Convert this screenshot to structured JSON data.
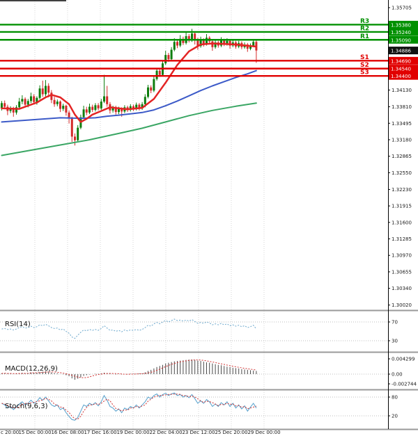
{
  "colors": {
    "background": "#ffffff",
    "candle_up": "#0e7d0e",
    "candle_down": "#d42a2a",
    "ma_fast_red": "#e32424",
    "ma_mid_blue": "#3c5ac8",
    "ma_slow_green": "#3aa664",
    "resistance_green": "#009000",
    "support_red": "#e10000",
    "current_price_badge": "#111111",
    "rsi_line": "#6aa7cc",
    "macd_hist": "#4a4a4a",
    "macd_signal": "#d03030",
    "stoch_k": "#55a0cc",
    "stoch_d": "#d03030",
    "grid": "#d6d6d6",
    "separator": "#9a9a9a",
    "axis_text": "#1a1a1a"
  },
  "levels": [
    {
      "name": "R3",
      "label": "1.35380",
      "price": 1.3538,
      "kind": "resistance"
    },
    {
      "name": "R2",
      "label": "1.35240",
      "price": 1.3524,
      "kind": "resistance"
    },
    {
      "name": "R1",
      "label": "1.35090",
      "price": 1.3509,
      "kind": "resistance"
    },
    {
      "name": "S1",
      "label": "1.34690",
      "price": 1.3469,
      "kind": "support"
    },
    {
      "name": "S2",
      "label": "1.34540",
      "price": 1.3454,
      "kind": "support"
    },
    {
      "name": "S3",
      "label": "1.34400",
      "price": 1.344,
      "kind": "support"
    }
  ],
  "current_price": {
    "label": "1.34886",
    "price": 1.34886
  },
  "panels": {
    "rsi": {
      "label": "RSI(14)",
      "tick_labels": [
        "70",
        "30"
      ],
      "tick_values": [
        70,
        30
      ]
    },
    "macd": {
      "label": "MACD(12,26,9)",
      "tick_labels": [
        "0.004299",
        "0.00",
        "-0.002744"
      ],
      "tick_values": [
        0.004299,
        0,
        -0.002744
      ]
    },
    "stoch": {
      "label": "Stoch(9,6,3)",
      "tick_labels": [
        "80",
        "20"
      ],
      "tick_values": [
        80,
        20
      ]
    }
  },
  "chart_data": [
    {
      "type": "candlestick",
      "panel": "main-price",
      "y_range": [
        1.29923,
        1.35851
      ],
      "y_tick_labels": [
        "1.35705",
        "1.34130",
        "1.33810",
        "1.33495",
        "1.33180",
        "1.32865",
        "1.32550",
        "1.32230",
        "1.31915",
        "1.31600",
        "1.31285",
        "1.30970",
        "1.30655",
        "1.30340",
        "1.30020"
      ],
      "y_tick_values": [
        1.35705,
        1.3413,
        1.3381,
        1.33495,
        1.3318,
        1.32865,
        1.3255,
        1.3223,
        1.31915,
        1.316,
        1.31285,
        1.3097,
        1.30655,
        1.3034,
        1.3002
      ],
      "x_tick_labels": {
        "partial": "c 20:00",
        "labels": [
          "15 Dec 00:00",
          "16 Dec 08:00",
          "17 Dec 16:00",
          "19 Dec 00:00",
          "22 Dec 04:00",
          "23 Dec 12:00",
          "25 Dec 20:00",
          "29 Dec 00:00"
        ]
      },
      "ohlc": [
        [
          1.3378,
          1.3392,
          1.3374,
          1.3388
        ],
        [
          1.3388,
          1.3393,
          1.3378,
          1.3381
        ],
        [
          1.3381,
          1.3385,
          1.3365,
          1.3373
        ],
        [
          1.3373,
          1.3382,
          1.3369,
          1.3378
        ],
        [
          1.3378,
          1.3381,
          1.3362,
          1.337
        ],
        [
          1.337,
          1.3384,
          1.3366,
          1.338
        ],
        [
          1.338,
          1.3398,
          1.3377,
          1.3391
        ],
        [
          1.3391,
          1.3403,
          1.3386,
          1.3396
        ],
        [
          1.3396,
          1.3399,
          1.3381,
          1.3385
        ],
        [
          1.3385,
          1.3396,
          1.338,
          1.3392
        ],
        [
          1.3392,
          1.3408,
          1.3388,
          1.3401
        ],
        [
          1.3401,
          1.3405,
          1.3386,
          1.339
        ],
        [
          1.339,
          1.3401,
          1.3385,
          1.3398
        ],
        [
          1.3398,
          1.3422,
          1.3395,
          1.3416
        ],
        [
          1.3416,
          1.3431,
          1.34,
          1.3405
        ],
        [
          1.3405,
          1.3432,
          1.3401,
          1.3421
        ],
        [
          1.3421,
          1.3426,
          1.3399,
          1.3408
        ],
        [
          1.3408,
          1.3413,
          1.3388,
          1.3394
        ],
        [
          1.3394,
          1.34,
          1.3381,
          1.3386
        ],
        [
          1.3386,
          1.3395,
          1.3382,
          1.3391
        ],
        [
          1.3391,
          1.3393,
          1.3371,
          1.3377
        ],
        [
          1.3377,
          1.3387,
          1.3373,
          1.3383
        ],
        [
          1.3383,
          1.3385,
          1.3364,
          1.337
        ],
        [
          1.337,
          1.3374,
          1.3349,
          1.3359
        ],
        [
          1.3359,
          1.3362,
          1.3314,
          1.3324
        ],
        [
          1.3324,
          1.333,
          1.3307,
          1.3317
        ],
        [
          1.3317,
          1.3346,
          1.3315,
          1.3341
        ],
        [
          1.3341,
          1.3366,
          1.3338,
          1.3361
        ],
        [
          1.3361,
          1.3383,
          1.3358,
          1.3376
        ],
        [
          1.3376,
          1.3381,
          1.3365,
          1.337
        ],
        [
          1.337,
          1.3387,
          1.3367,
          1.3381
        ],
        [
          1.3381,
          1.3385,
          1.3371,
          1.3375
        ],
        [
          1.3375,
          1.3388,
          1.3372,
          1.3384
        ],
        [
          1.3384,
          1.3388,
          1.3374,
          1.3378
        ],
        [
          1.3378,
          1.3396,
          1.3375,
          1.3391
        ],
        [
          1.3391,
          1.3442,
          1.3388,
          1.3401
        ],
        [
          1.3401,
          1.3421,
          1.3381,
          1.3386
        ],
        [
          1.3386,
          1.339,
          1.3368,
          1.3374
        ],
        [
          1.3374,
          1.3383,
          1.337,
          1.338
        ],
        [
          1.338,
          1.3383,
          1.3366,
          1.3371
        ],
        [
          1.3371,
          1.3381,
          1.3367,
          1.3377
        ],
        [
          1.3377,
          1.338,
          1.3362,
          1.3372
        ],
        [
          1.3372,
          1.3384,
          1.3369,
          1.338
        ],
        [
          1.338,
          1.3383,
          1.3371,
          1.3375
        ],
        [
          1.3375,
          1.3386,
          1.3372,
          1.3382
        ],
        [
          1.3382,
          1.3385,
          1.3373,
          1.3377
        ],
        [
          1.3377,
          1.3389,
          1.3374,
          1.3385
        ],
        [
          1.3385,
          1.3388,
          1.3374,
          1.3378
        ],
        [
          1.3378,
          1.339,
          1.3375,
          1.3386
        ],
        [
          1.3386,
          1.3405,
          1.338,
          1.34
        ],
        [
          1.34,
          1.3423,
          1.3397,
          1.3418
        ],
        [
          1.3418,
          1.3422,
          1.3407,
          1.3412
        ],
        [
          1.3412,
          1.344,
          1.3409,
          1.3434
        ],
        [
          1.3434,
          1.3455,
          1.3431,
          1.345
        ],
        [
          1.345,
          1.3454,
          1.3438,
          1.3442
        ],
        [
          1.3442,
          1.347,
          1.344,
          1.3464
        ],
        [
          1.3464,
          1.3488,
          1.3461,
          1.348
        ],
        [
          1.348,
          1.3484,
          1.3467,
          1.3472
        ],
        [
          1.3472,
          1.3495,
          1.3469,
          1.349
        ],
        [
          1.349,
          1.3512,
          1.3487,
          1.3505
        ],
        [
          1.3505,
          1.351,
          1.3493,
          1.3498
        ],
        [
          1.3498,
          1.3518,
          1.3495,
          1.3511
        ],
        [
          1.3511,
          1.3515,
          1.3499,
          1.3503
        ],
        [
          1.3503,
          1.3525,
          1.35,
          1.3516
        ],
        [
          1.3516,
          1.352,
          1.3504,
          1.3508
        ],
        [
          1.3508,
          1.353,
          1.3505,
          1.3521
        ],
        [
          1.3521,
          1.3524,
          1.35,
          1.351
        ],
        [
          1.351,
          1.3513,
          1.349,
          1.3497
        ],
        [
          1.3497,
          1.3515,
          1.3494,
          1.3509
        ],
        [
          1.3509,
          1.3512,
          1.3496,
          1.3501
        ],
        [
          1.3501,
          1.352,
          1.3498,
          1.3513
        ],
        [
          1.3513,
          1.3516,
          1.3501,
          1.3506
        ],
        [
          1.3506,
          1.3509,
          1.3488,
          1.3495
        ],
        [
          1.3495,
          1.3508,
          1.3492,
          1.3504
        ],
        [
          1.3504,
          1.3507,
          1.3494,
          1.3498
        ],
        [
          1.3498,
          1.3514,
          1.3495,
          1.3508
        ],
        [
          1.3508,
          1.3511,
          1.3497,
          1.3501
        ],
        [
          1.3501,
          1.3512,
          1.3498,
          1.3507
        ],
        [
          1.3507,
          1.351,
          1.3492,
          1.3498
        ],
        [
          1.3498,
          1.3508,
          1.3495,
          1.3504
        ],
        [
          1.3504,
          1.3507,
          1.3492,
          1.3496
        ],
        [
          1.3496,
          1.3507,
          1.3493,
          1.3503
        ],
        [
          1.3503,
          1.3506,
          1.3491,
          1.3495
        ],
        [
          1.3495,
          1.3504,
          1.3492,
          1.35
        ],
        [
          1.35,
          1.3503,
          1.3486,
          1.3492
        ],
        [
          1.3492,
          1.3502,
          1.3489,
          1.3498
        ],
        [
          1.3498,
          1.351,
          1.3495,
          1.3505
        ],
        [
          1.3505,
          1.3508,
          1.3465,
          1.34886
        ]
      ],
      "overlays": [
        {
          "name": "ma-slow-green",
          "color_key": "ma_slow_green",
          "width": 2,
          "points": [
            [
              0,
              1.3288
            ],
            [
              10,
              1.3298
            ],
            [
              20,
              1.3308
            ],
            [
              30,
              1.3318
            ],
            [
              40,
              1.333
            ],
            [
              48,
              1.334
            ],
            [
              56,
              1.3352
            ],
            [
              64,
              1.3364
            ],
            [
              72,
              1.3374
            ],
            [
              80,
              1.3382
            ],
            [
              87,
              1.3388
            ]
          ]
        },
        {
          "name": "ma-mid-blue",
          "color_key": "ma_mid_blue",
          "width": 2,
          "points": [
            [
              0,
              1.3352
            ],
            [
              10,
              1.3356
            ],
            [
              20,
              1.336
            ],
            [
              27,
              1.3359
            ],
            [
              32,
              1.336
            ],
            [
              36,
              1.3363
            ],
            [
              40,
              1.3365
            ],
            [
              45,
              1.3368
            ],
            [
              48,
              1.337
            ],
            [
              52,
              1.3375
            ],
            [
              56,
              1.3383
            ],
            [
              60,
              1.3392
            ],
            [
              64,
              1.3402
            ],
            [
              68,
              1.3412
            ],
            [
              72,
              1.3421
            ],
            [
              76,
              1.3429
            ],
            [
              80,
              1.3437
            ],
            [
              84,
              1.3444
            ],
            [
              87,
              1.345
            ]
          ]
        },
        {
          "name": "ma-fast-red",
          "color_key": "ma_fast_red",
          "width": 2.5,
          "points": [
            [
              0,
              1.3378
            ],
            [
              6,
              1.3377
            ],
            [
              12,
              1.3389
            ],
            [
              15,
              1.3399
            ],
            [
              17,
              1.3404
            ],
            [
              20,
              1.3399
            ],
            [
              23,
              1.3386
            ],
            [
              25,
              1.3366
            ],
            [
              27,
              1.3352
            ],
            [
              29,
              1.3358
            ],
            [
              31,
              1.3366
            ],
            [
              34,
              1.3373
            ],
            [
              37,
              1.338
            ],
            [
              43,
              1.3376
            ],
            [
              48,
              1.3379
            ],
            [
              52,
              1.3396
            ],
            [
              56,
              1.3427
            ],
            [
              60,
              1.3461
            ],
            [
              64,
              1.3487
            ],
            [
              68,
              1.35
            ],
            [
              72,
              1.3502
            ],
            [
              80,
              1.35
            ],
            [
              87,
              1.3496
            ]
          ]
        }
      ]
    },
    {
      "type": "line",
      "panel": "rsi",
      "name": "RSI(14)",
      "range": [
        0,
        100
      ],
      "levels": [
        70,
        30
      ],
      "values": [
        55,
        56,
        54,
        55,
        53,
        55,
        58,
        60,
        57,
        58,
        61,
        58,
        60,
        64,
        62,
        65,
        62,
        58,
        56,
        57,
        53,
        55,
        50,
        46,
        38,
        35,
        42,
        48,
        53,
        51,
        54,
        52,
        54,
        52,
        56,
        62,
        57,
        52,
        53,
        50,
        52,
        49,
        53,
        51,
        53,
        52,
        54,
        52,
        54,
        58,
        63,
        61,
        66,
        69,
        66,
        70,
        73,
        70,
        73,
        76,
        73,
        74,
        72,
        74,
        72,
        75,
        71,
        67,
        69,
        67,
        70,
        68,
        64,
        66,
        64,
        67,
        64,
        66,
        62,
        64,
        61,
        63,
        60,
        62,
        58,
        60,
        63,
        55
      ]
    },
    {
      "type": "bar",
      "panel": "macd",
      "name": "MACD(12,26,9)",
      "y_ticks": [
        0.004299,
        0,
        -0.002744
      ],
      "signal_smoothing": 6,
      "histogram": [
        0.0002,
        0.0003,
        0.0001,
        0.0002,
        0.0,
        0.0001,
        0.0003,
        0.0004,
        0.0003,
        0.0003,
        0.0005,
        0.0004,
        0.0004,
        0.0006,
        0.0007,
        0.0008,
        0.0007,
        0.0005,
        0.0003,
        0.0002,
        0.0,
        -0.0001,
        -0.0003,
        -0.0006,
        -0.0012,
        -0.0016,
        -0.0013,
        -0.0009,
        -0.0005,
        -0.0003,
        -0.0001,
        0.0,
        0.0001,
        0.0001,
        0.0002,
        0.0004,
        0.0003,
        0.0001,
        0.0,
        -0.0001,
        0.0,
        -0.0001,
        0.0,
        0.0,
        0.0001,
        0.0001,
        0.0001,
        0.0002,
        0.0002,
        0.0005,
        0.0009,
        0.0012,
        0.0016,
        0.002,
        0.0023,
        0.0026,
        0.003,
        0.0032,
        0.0034,
        0.0036,
        0.0037,
        0.0038,
        0.0039,
        0.004,
        0.0041,
        0.0041,
        0.004,
        0.0038,
        0.0037,
        0.0035,
        0.0033,
        0.0032,
        0.003,
        0.0028,
        0.0026,
        0.0025,
        0.0023,
        0.0021,
        0.002,
        0.0018,
        0.0017,
        0.0016,
        0.0014,
        0.0013,
        0.0012,
        0.0011,
        0.001,
        0.0009
      ]
    },
    {
      "type": "line",
      "panel": "stoch",
      "name": "Stoch(9,6,3)",
      "range": [
        0,
        100
      ],
      "levels": [
        80,
        20
      ],
      "d_smoothing": 3,
      "k": [
        60,
        55,
        45,
        50,
        40,
        48,
        58,
        65,
        55,
        60,
        70,
        60,
        66,
        78,
        70,
        80,
        68,
        55,
        50,
        55,
        40,
        45,
        30,
        18,
        8,
        6,
        15,
        35,
        55,
        50,
        60,
        55,
        62,
        52,
        65,
        85,
        70,
        50,
        45,
        35,
        42,
        30,
        45,
        40,
        50,
        45,
        55,
        45,
        55,
        65,
        80,
        75,
        85,
        90,
        80,
        88,
        92,
        85,
        90,
        93,
        85,
        88,
        80,
        85,
        78,
        88,
        75,
        60,
        68,
        60,
        72,
        65,
        50,
        58,
        50,
        62,
        55,
        65,
        50,
        60,
        45,
        55,
        42,
        52,
        35,
        48,
        60,
        45
      ]
    }
  ]
}
